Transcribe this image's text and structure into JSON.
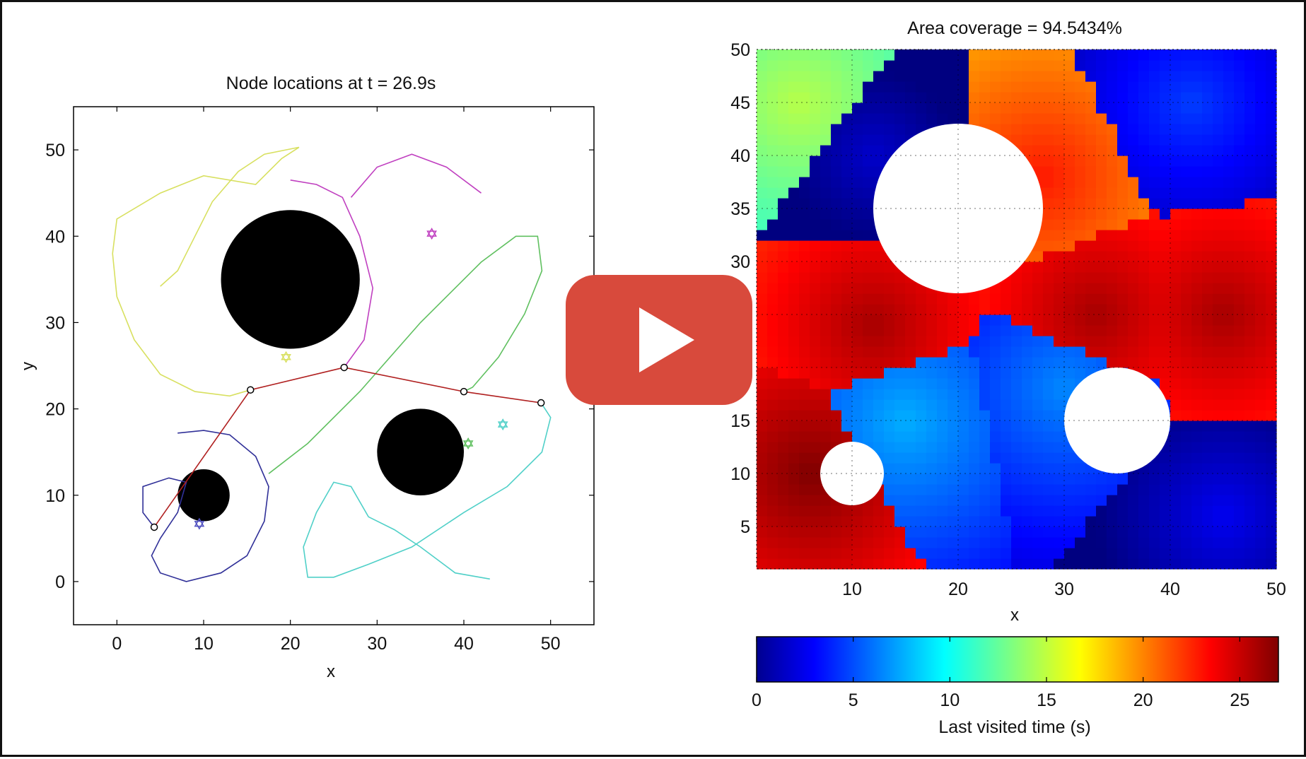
{
  "left_chart": {
    "title": "Node locations at t = 26.9s",
    "xlabel": "x",
    "ylabel": "y",
    "xticks": [
      0,
      10,
      20,
      30,
      40,
      50
    ],
    "yticks": [
      0,
      10,
      20,
      30,
      40,
      50
    ],
    "xlim": [
      -5,
      55
    ],
    "ylim": [
      -5,
      55
    ]
  },
  "right_chart": {
    "title": "Area coverage = 94.5434%",
    "xlabel": "x",
    "xticks": [
      10,
      20,
      30,
      40,
      50
    ],
    "yticks": [
      5,
      10,
      15,
      20,
      25,
      30,
      35,
      40,
      45,
      50
    ],
    "xlim": [
      1,
      50
    ],
    "ylim": [
      1,
      50
    ]
  },
  "colorbar": {
    "label": "Last visited time (s)",
    "ticks": [
      0,
      5,
      10,
      15,
      20,
      25
    ],
    "range": [
      0,
      27
    ]
  },
  "colors": {
    "play_red": "#d84a3c",
    "obstacle": "#000000",
    "link": "#b02020"
  },
  "play_button": {
    "icon": "play-icon"
  },
  "chart_data": [
    {
      "type": "scatter",
      "title": "Node locations at t = 26.9s",
      "xlabel": "x",
      "ylabel": "y",
      "xlim": [
        -5,
        55
      ],
      "ylim": [
        -5,
        55
      ],
      "obstacles": [
        {
          "cx": 20,
          "cy": 35,
          "r": 8
        },
        {
          "cx": 35,
          "cy": 15,
          "r": 5
        },
        {
          "cx": 10,
          "cy": 10,
          "r": 3
        }
      ],
      "nodes": [
        {
          "x": 4.3,
          "y": 6.3
        },
        {
          "x": 15.4,
          "y": 22.2
        },
        {
          "x": 26.2,
          "y": 24.8
        },
        {
          "x": 40.0,
          "y": 22.0
        },
        {
          "x": 48.9,
          "y": 20.7
        }
      ],
      "trajectories": [
        {
          "color": "#d8e060",
          "points": [
            [
              5,
              34.2
            ],
            [
              7,
              36
            ],
            [
              9,
              40
            ],
            [
              11,
              44
            ],
            [
              14,
              47.5
            ],
            [
              17,
              49.5
            ],
            [
              21,
              50.3
            ],
            [
              19,
              49
            ],
            [
              16,
              46
            ],
            [
              10,
              47
            ],
            [
              5,
              45
            ],
            [
              0,
              42
            ],
            [
              -0.5,
              38
            ],
            [
              0,
              33
            ],
            [
              2,
              28
            ],
            [
              5,
              24
            ],
            [
              9,
              22
            ],
            [
              13,
              21.5
            ],
            [
              15.4,
              22.2
            ]
          ]
        },
        {
          "color": "#c040c0",
          "points": [
            [
              20,
              46.5
            ],
            [
              23,
              46
            ],
            [
              26,
              44.5
            ],
            [
              28,
              40
            ],
            [
              29.5,
              34
            ],
            [
              28.5,
              28
            ],
            [
              26.2,
              24.8
            ]
          ]
        },
        {
          "color": "#c040c0",
          "points": [
            [
              27,
              44.5
            ],
            [
              30,
              48
            ],
            [
              34,
              49.5
            ],
            [
              38,
              48
            ],
            [
              42,
              45
            ]
          ]
        },
        {
          "color": "#60c060",
          "points": [
            [
              17.5,
              12.5
            ],
            [
              22,
              16
            ],
            [
              28,
              22
            ],
            [
              35,
              30
            ],
            [
              42,
              37
            ],
            [
              46,
              40
            ],
            [
              48.5,
              40
            ],
            [
              49,
              36
            ],
            [
              47,
              31
            ],
            [
              44,
              26
            ],
            [
              41,
              22.5
            ],
            [
              40,
              22
            ]
          ]
        },
        {
          "color": "#50d0c8",
          "points": [
            [
              48.9,
              20.7
            ],
            [
              50,
              19
            ],
            [
              49,
              15
            ],
            [
              45,
              11
            ],
            [
              40,
              8
            ],
            [
              34,
              4
            ],
            [
              29,
              2
            ],
            [
              25,
              0.5
            ],
            [
              22,
              0.5
            ],
            [
              21.5,
              4
            ],
            [
              23,
              8
            ],
            [
              25,
              11.5
            ],
            [
              27,
              11
            ],
            [
              29,
              7.5
            ],
            [
              32,
              6
            ],
            [
              35,
              4
            ],
            [
              39,
              1
            ],
            [
              43,
              0.3
            ]
          ]
        },
        {
          "color": "#303098",
          "points": [
            [
              4.3,
              6.3
            ],
            [
              3,
              8
            ],
            [
              3,
              11
            ],
            [
              6,
              12
            ],
            [
              8,
              11.5
            ],
            [
              7,
              8
            ],
            [
              5,
              5
            ],
            [
              4,
              3
            ],
            [
              5,
              1
            ],
            [
              8,
              0
            ],
            [
              12,
              1
            ],
            [
              15,
              3
            ],
            [
              17,
              7
            ],
            [
              17.5,
              11
            ],
            [
              16,
              14.5
            ],
            [
              13,
              17
            ],
            [
              10,
              17.5
            ],
            [
              7,
              17.2
            ]
          ]
        }
      ],
      "links": [
        [
          0,
          1
        ],
        [
          1,
          2
        ],
        [
          2,
          3
        ],
        [
          3,
          4
        ]
      ],
      "markers": [
        {
          "x": 36.3,
          "y": 40.3,
          "color": "#c040c0"
        },
        {
          "x": 44.5,
          "y": 18.2,
          "color": "#50d0c8"
        },
        {
          "x": 19.5,
          "y": 26.0,
          "color": "#d8e060"
        },
        {
          "x": 40.5,
          "y": 16.0,
          "color": "#60c060"
        },
        {
          "x": 9.5,
          "y": 6.7,
          "color": "#5050c0"
        }
      ]
    },
    {
      "type": "heatmap",
      "title": "Area coverage = 94.5434%",
      "xlabel": "x",
      "xlim": [
        1,
        50
      ],
      "ylim": [
        1,
        50
      ],
      "colorbar_label": "Last visited time (s)",
      "crange": [
        0,
        27
      ],
      "coverage_percent": 94.5434,
      "uncovered_circles": [
        {
          "cx": 20,
          "cy": 35,
          "r": 8
        },
        {
          "cx": 35,
          "cy": 15,
          "r": 5
        },
        {
          "cx": 10,
          "cy": 10,
          "r": 3
        }
      ],
      "visit_sources": [
        {
          "x": 42,
          "y": 45,
          "t": 5
        },
        {
          "x": 12,
          "y": 40,
          "t": 2
        },
        {
          "x": 30,
          "y": 18,
          "t": 7
        },
        {
          "x": 15,
          "y": 15,
          "t": 8
        },
        {
          "x": 28,
          "y": 38,
          "t": 23
        },
        {
          "x": 6,
          "y": 10,
          "t": 27
        },
        {
          "x": 12,
          "y": 24,
          "t": 26
        },
        {
          "x": 33,
          "y": 25,
          "t": 26
        },
        {
          "x": 45,
          "y": 25,
          "t": 26
        },
        {
          "x": 5,
          "y": 45,
          "t": 15
        },
        {
          "x": 45,
          "y": 6,
          "t": 3
        }
      ]
    }
  ]
}
